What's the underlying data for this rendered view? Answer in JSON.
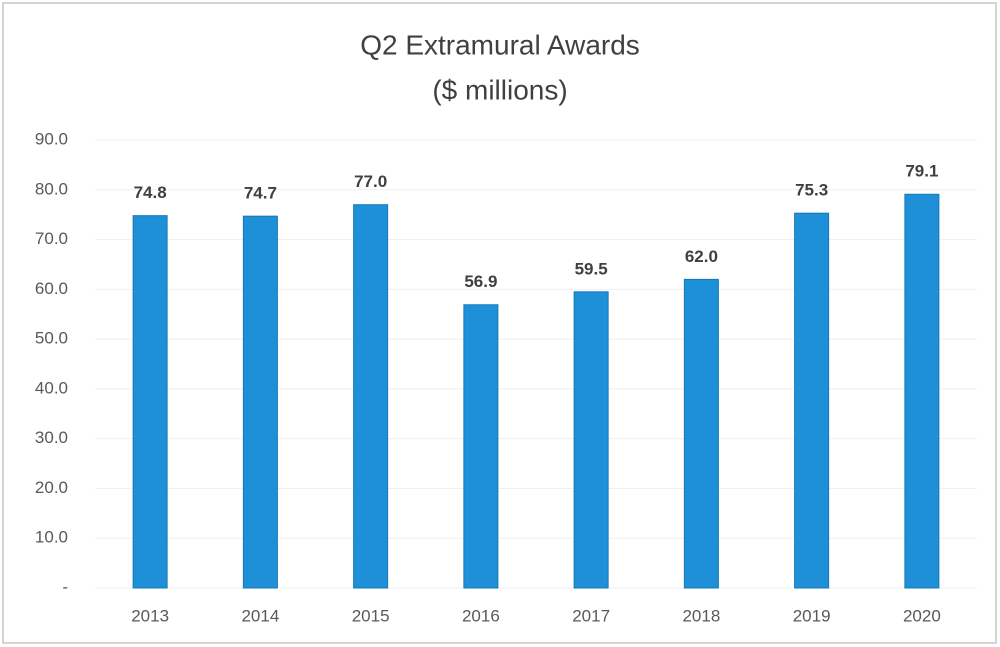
{
  "chart_data": {
    "type": "bar",
    "title": "Q2 Extramural Awards",
    "subtitle": "($ millions)",
    "categories": [
      "2013",
      "2014",
      "2015",
      "2016",
      "2017",
      "2018",
      "2019",
      "2020"
    ],
    "values": [
      74.8,
      74.7,
      77,
      56.9,
      59.5,
      62,
      75.3,
      79.1
    ],
    "value_labels": [
      "74.8",
      "74.7",
      "77.0",
      "56.9",
      "59.5",
      "62.0",
      "75.3",
      "79.1"
    ],
    "color": "#1e90d8",
    "ylim": [
      0,
      90
    ],
    "yticks": [
      {
        "value": 0,
        "label": "-"
      },
      {
        "value": 10,
        "label": "10.0"
      },
      {
        "value": 20,
        "label": "20.0"
      },
      {
        "value": 30,
        "label": "30.0"
      },
      {
        "value": 40,
        "label": "40.0"
      },
      {
        "value": 50,
        "label": "50.0"
      },
      {
        "value": 60,
        "label": "60.0"
      },
      {
        "value": 70,
        "label": "70.0"
      },
      {
        "value": 80,
        "label": "80.0"
      },
      {
        "value": 90,
        "label": "90.0"
      }
    ],
    "grid": true
  }
}
